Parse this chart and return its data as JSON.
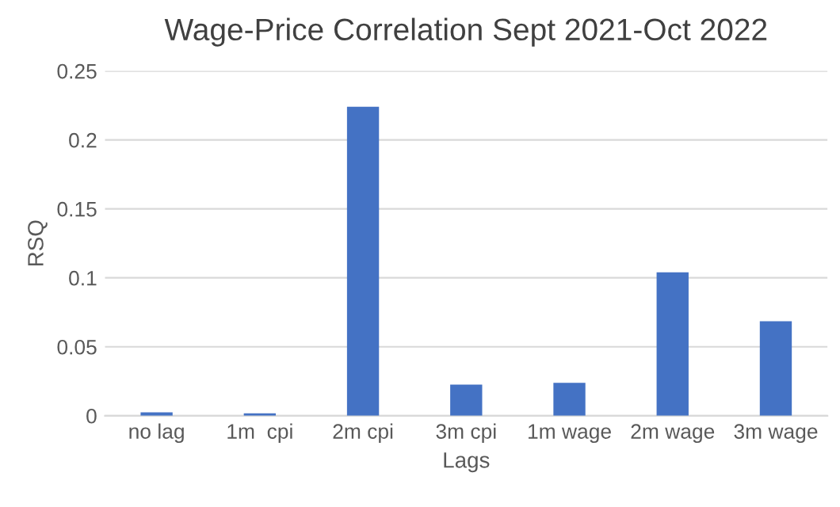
{
  "chart_data": {
    "type": "bar",
    "title": "Wage-Price Correlation Sept 2021-Oct 2022",
    "xlabel": "Lags",
    "ylabel": "RSQ",
    "categories": [
      "no lag",
      "1m  cpi",
      "2m cpi",
      "3m cpi",
      "1m wage",
      "2m wage",
      "3m wage"
    ],
    "values": [
      0.0025,
      0.0017,
      0.224,
      0.0226,
      0.0238,
      0.104,
      0.0686
    ],
    "color": "#4472c4",
    "ylim": [
      0,
      0.25
    ],
    "yticks": [
      0,
      {
        "value": 0.05,
        "label": "0.05"
      },
      {
        "value": 0.1,
        "label": "0.1"
      },
      {
        "value": 0.15,
        "label": "0.15"
      },
      {
        "value": 0.2,
        "label": "0.2"
      },
      {
        "value": 0.25,
        "label": "0.25"
      }
    ],
    "grid": "y",
    "legend": false
  }
}
